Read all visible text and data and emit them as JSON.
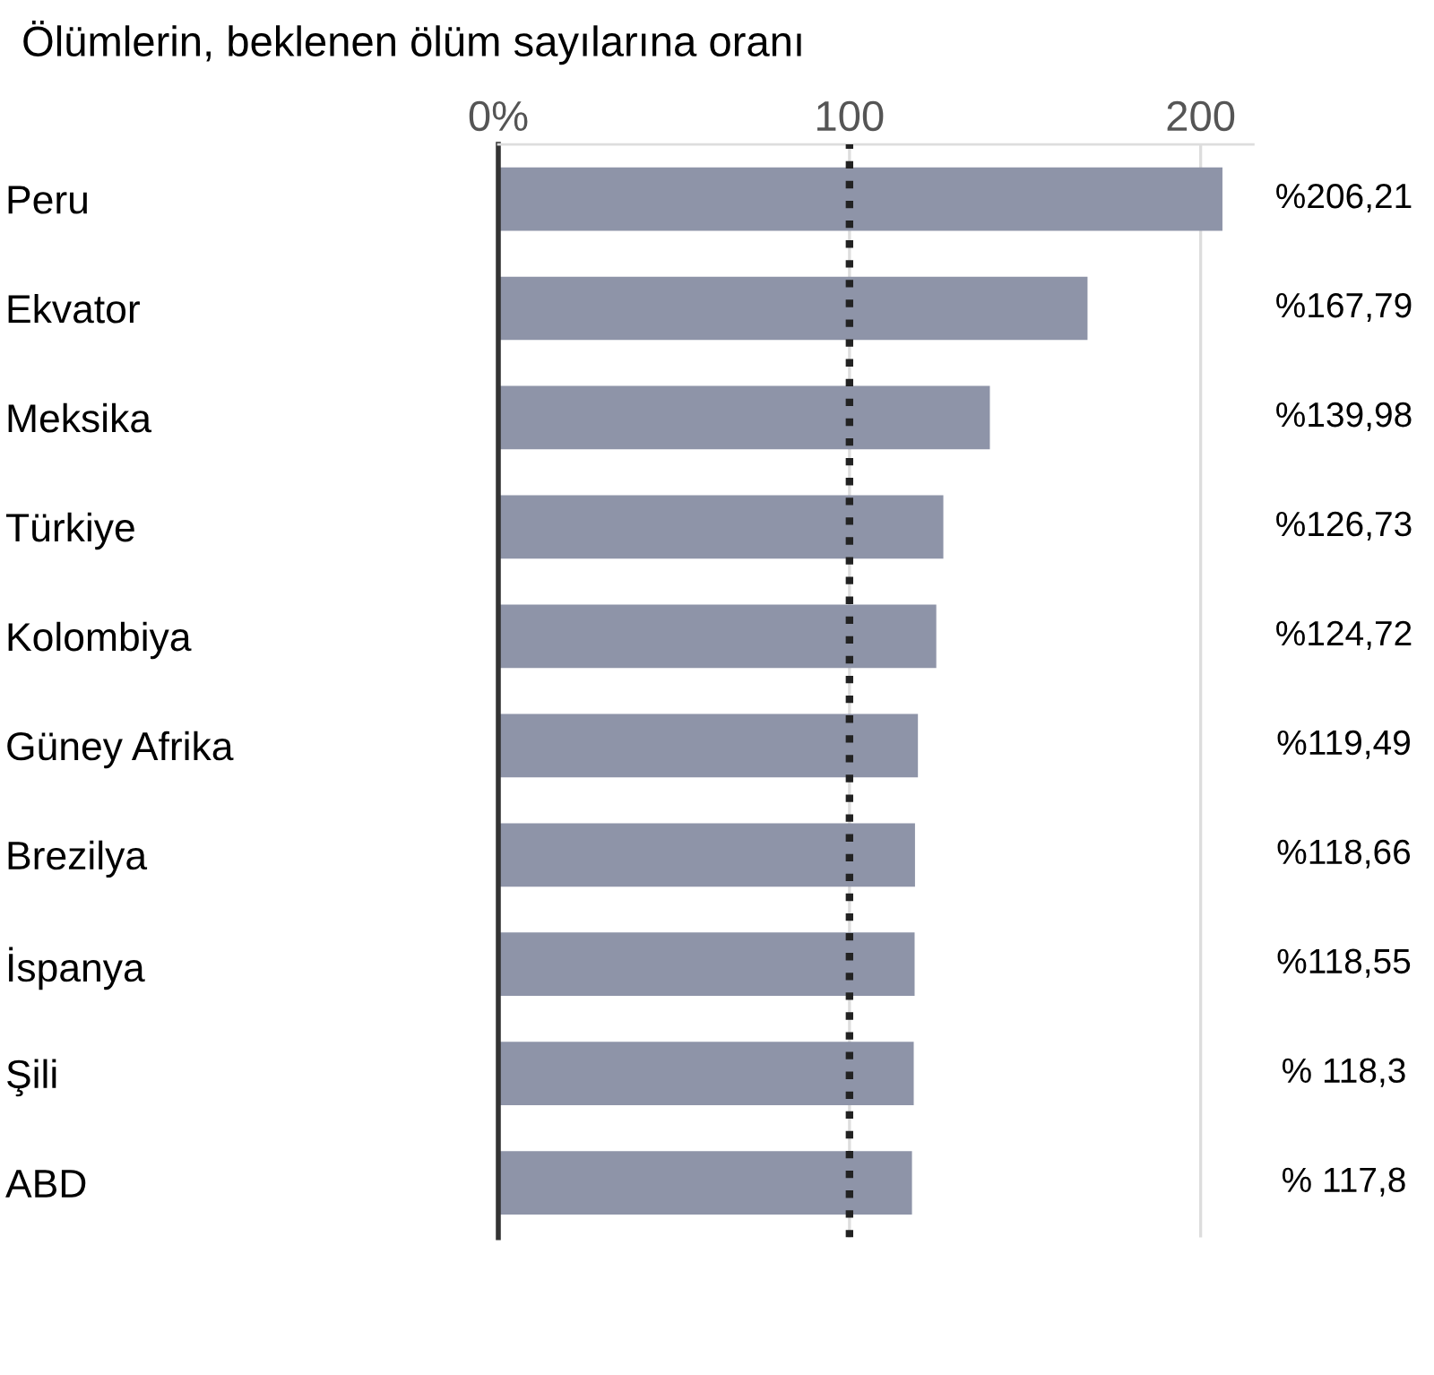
{
  "chart_data": {
    "type": "bar",
    "orientation": "horizontal",
    "title": "Ölümlerin, beklenen ölüm sayılarına oranı",
    "categories": [
      "Peru",
      "Ekvator",
      "Meksika",
      "Türkiye",
      "Kolombiya",
      "Güney Afrika",
      "Brezilya",
      "İspanya",
      "Şili",
      "ABD"
    ],
    "values": [
      206.21,
      167.79,
      139.98,
      126.73,
      124.72,
      119.49,
      118.66,
      118.55,
      118.3,
      117.8
    ],
    "value_labels": [
      "%206,21",
      "%167,79",
      "%139,98",
      "%126,73",
      "%124,72",
      "%119,49",
      "%118,66",
      "%118,55",
      "% 118,3",
      "% 117,8"
    ],
    "color": "#8e94a8",
    "xlim": [
      0,
      215
    ],
    "xticks": [
      {
        "value": 0,
        "label": "0%"
      },
      100,
      200
    ],
    "grid": "x",
    "ref_lines": [
      {
        "axis": "x",
        "value": 100,
        "color": "#222222",
        "line_style": "dotted"
      }
    ]
  }
}
